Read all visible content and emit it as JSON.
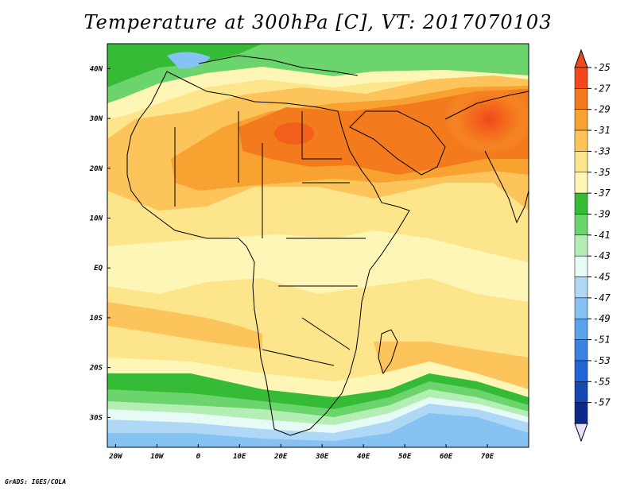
{
  "title": "Temperature at 300hPa [C], VT: 2017070103",
  "credit": "GrADS: IGES/COLA",
  "map": {
    "lat_labels": [
      "40N",
      "30N",
      "20N",
      "10N",
      "EQ",
      "10S",
      "20S",
      "30S"
    ],
    "lon_labels": [
      "20W",
      "10W",
      "0",
      "10E",
      "20E",
      "30E",
      "40E",
      "50E",
      "60E",
      "70E"
    ],
    "lat_values": [
      40,
      30,
      20,
      10,
      0,
      -10,
      -20,
      -30
    ],
    "lon_values": [
      -20,
      -10,
      0,
      10,
      20,
      30,
      40,
      50,
      60,
      70
    ],
    "lat_range": [
      -36,
      45
    ],
    "lon_range": [
      -22,
      80
    ]
  },
  "colorbar": {
    "labels": [
      "-25",
      "-27",
      "-29",
      "-31",
      "-33",
      "-35",
      "-37",
      "-39",
      "-41",
      "-43",
      "-45",
      "-47",
      "-49",
      "-51",
      "-53",
      "-55",
      "-57"
    ],
    "colors": [
      "#f2481c",
      "#f47a1e",
      "#f8a232",
      "#fcc45a",
      "#fde58c",
      "#fdf6b6",
      "#36bb36",
      "#6cd46c",
      "#b4eeb4",
      "#e6fbf5",
      "#aed8f6",
      "#86c2f2",
      "#5aa2ea",
      "#3c82e2",
      "#2264d6",
      "#1449b2",
      "#0c2a8c"
    ],
    "top_arrow_color": "#f2481c",
    "bottom_arrow_color": "#e8e2f8"
  }
}
